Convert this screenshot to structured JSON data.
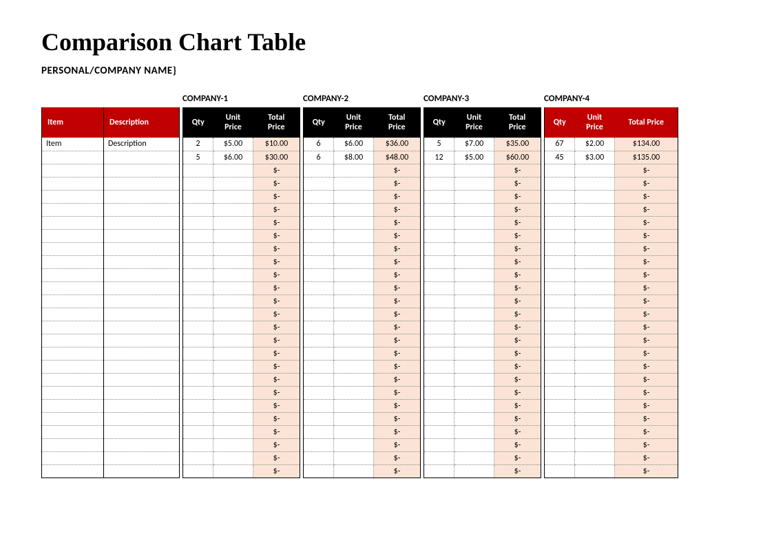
{
  "title": "Comparison Chart Table",
  "subtitle": "PERSONAL/COMPANY NAME}",
  "columns": {
    "item": "Item",
    "description": "Description",
    "qty": "Qty",
    "unit_price": "Unit Price",
    "total_price": "Total Price"
  },
  "empty_total": "$-",
  "total_row_count": 26,
  "desc_rows": [
    {
      "item": "Item",
      "description": "Description"
    },
    {
      "item": "",
      "description": ""
    }
  ],
  "companies": [
    {
      "label": "COMPANY-1",
      "header_style": "black",
      "rows": [
        {
          "qty": "2",
          "unit": "$5.00",
          "total": "$10.00"
        },
        {
          "qty": "5",
          "unit": "$6.00",
          "total": "$30.00"
        }
      ]
    },
    {
      "label": "COMPANY-2",
      "header_style": "black",
      "rows": [
        {
          "qty": "6",
          "unit": "$6.00",
          "total": "$36.00"
        },
        {
          "qty": "6",
          "unit": "$8.00",
          "total": "$48.00"
        }
      ]
    },
    {
      "label": "COMPANY-3",
      "header_style": "black",
      "rows": [
        {
          "qty": "5",
          "unit": "$7.00",
          "total": "$35.00"
        },
        {
          "qty": "12",
          "unit": "$5.00",
          "total": "$60.00"
        }
      ]
    },
    {
      "label": "COMPANY-4",
      "header_style": "red",
      "rows": [
        {
          "qty": "67",
          "unit": "$2.00",
          "total": "$134.00"
        },
        {
          "qty": "45",
          "unit": "$3.00",
          "total": "$135.00"
        }
      ]
    }
  ],
  "colors": {
    "red_header": "#c00000",
    "black_header": "#000000",
    "total_tint": "#fbe4d5",
    "background": "#ffffff",
    "dotted_border": "#888888"
  },
  "fonts": {
    "title_family": "Times New Roman",
    "title_size_pt": 28,
    "body_family": "Calibri",
    "body_size_pt": 9
  }
}
